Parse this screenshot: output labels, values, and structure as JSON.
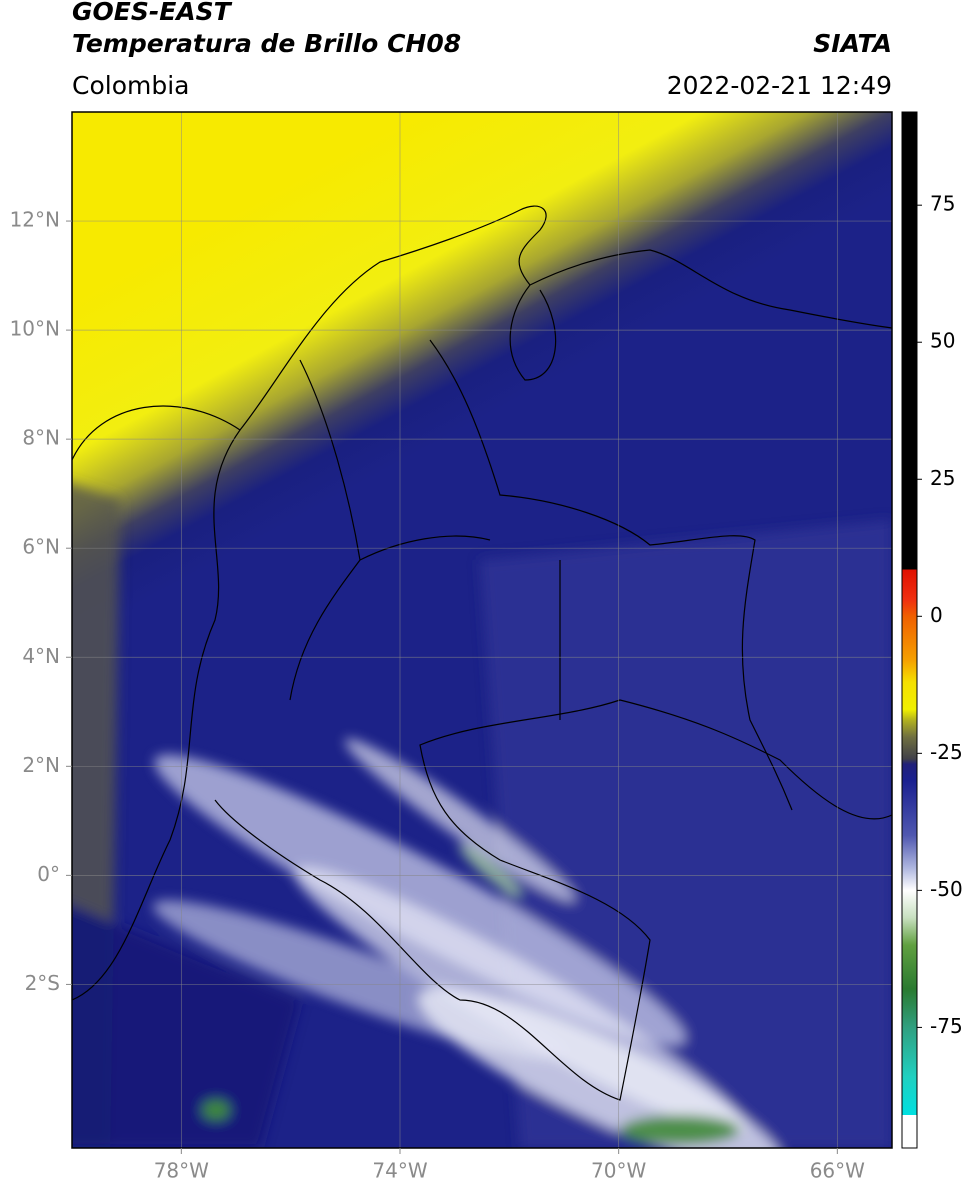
{
  "header": {
    "satellite": "GOES-EAST",
    "title": "Temperatura de Brillo CH08",
    "source": "SIATA",
    "region": "Colombia",
    "datetime": "2022-02-21 12:49"
  },
  "map": {
    "lonlim": [
      -80,
      -65
    ],
    "latlim": [
      -5,
      14
    ],
    "lonticks": [
      {
        "value": -78,
        "label": "78°W"
      },
      {
        "value": -74,
        "label": "74°W"
      },
      {
        "value": -70,
        "label": "70°W"
      },
      {
        "value": -66,
        "label": "66°W"
      }
    ],
    "latticks": [
      {
        "value": 12,
        "label": "12°N"
      },
      {
        "value": 10,
        "label": "10°N"
      },
      {
        "value": 8,
        "label": "8°N"
      },
      {
        "value": 6,
        "label": "6°N"
      },
      {
        "value": 4,
        "label": "4°N"
      },
      {
        "value": 2,
        "label": "2°N"
      },
      {
        "value": 0,
        "label": "0°"
      },
      {
        "value": -2,
        "label": "2°S"
      }
    ],
    "grid": true
  },
  "colorbar": {
    "lim": [
      -97,
      92
    ],
    "ticks": [
      75,
      50,
      25,
      0,
      -25,
      -50,
      -75
    ],
    "stops": [
      {
        "value": 92,
        "color": "#000000"
      },
      {
        "value": 8.5,
        "color": "#000000"
      },
      {
        "value": 8.5,
        "color": "#e01000"
      },
      {
        "value": 3,
        "color": "#f03010"
      },
      {
        "value": 0,
        "color": "#f06000"
      },
      {
        "value": -8,
        "color": "#f5a000"
      },
      {
        "value": -12,
        "color": "#f5e000"
      },
      {
        "value": -17,
        "color": "#f0f000"
      },
      {
        "value": -19,
        "color": "#b0b020"
      },
      {
        "value": -22,
        "color": "#707040"
      },
      {
        "value": -26,
        "color": "#404048"
      },
      {
        "value": -27,
        "color": "#20207a"
      },
      {
        "value": -30,
        "color": "#1a2090"
      },
      {
        "value": -40,
        "color": "#5058b0"
      },
      {
        "value": -46,
        "color": "#b0b8e0"
      },
      {
        "value": -50,
        "color": "#ffffff"
      },
      {
        "value": -55,
        "color": "#c8e0c0"
      },
      {
        "value": -60,
        "color": "#60a040"
      },
      {
        "value": -68,
        "color": "#2a7a30"
      },
      {
        "value": -75,
        "color": "#30a080"
      },
      {
        "value": -84,
        "color": "#20d0c0"
      },
      {
        "value": -91,
        "color": "#00e0e0"
      },
      {
        "value": -91,
        "color": "#ffffff"
      },
      {
        "value": -97,
        "color": "#ffffff"
      }
    ]
  }
}
